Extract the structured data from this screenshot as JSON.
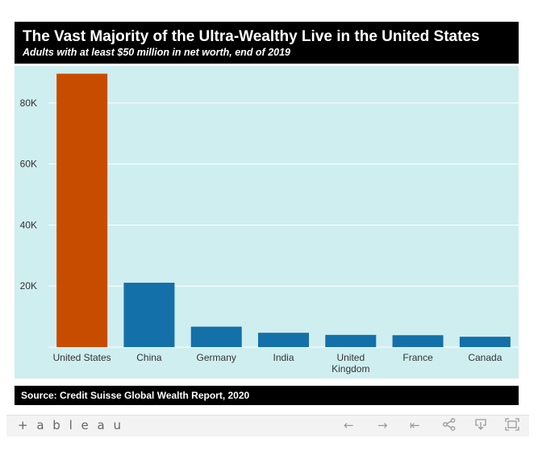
{
  "header": {
    "title": "The Vast Majority of the Ultra-Wealthy Live in the United States",
    "subtitle": "Adults with at least $50 million in net worth, end of 2019"
  },
  "footer": {
    "source": "Source: Credit Suisse Global Wealth Report, 2020"
  },
  "toolbar": {
    "brand": "+ a b l e a u",
    "icons": [
      "tableau-logo-icon",
      "back-arrow-icon",
      "forward-arrow-icon",
      "revert-icon",
      "share-icon",
      "download-icon",
      "fullscreen-icon"
    ]
  },
  "colors": {
    "background": "#cfeef0",
    "highlight_bar": "#c84c00",
    "bar": "#1470a8",
    "header": "#000000"
  },
  "chart_data": {
    "type": "bar",
    "title": "The Vast Majority of the Ultra-Wealthy Live in the United States",
    "subtitle": "Adults with at least $50 million in net worth, end of 2019",
    "categories": [
      "United States",
      "China",
      "Germany",
      "India",
      "United Kingdom",
      "France",
      "Canada"
    ],
    "category_lines": [
      [
        "United States"
      ],
      [
        "China"
      ],
      [
        "Germany"
      ],
      [
        "India"
      ],
      [
        "United",
        "Kingdom"
      ],
      [
        "France"
      ],
      [
        "Canada"
      ]
    ],
    "values": [
      89600,
      21100,
      6700,
      4700,
      4000,
      3900,
      3400
    ],
    "highlight": "United States",
    "ylim": [
      0,
      90000
    ],
    "yticks": [
      20000,
      40000,
      60000,
      80000
    ],
    "ytick_labels": [
      "20K",
      "40K",
      "60K",
      "80K"
    ],
    "xlabel": "",
    "ylabel": "",
    "grid": true
  }
}
